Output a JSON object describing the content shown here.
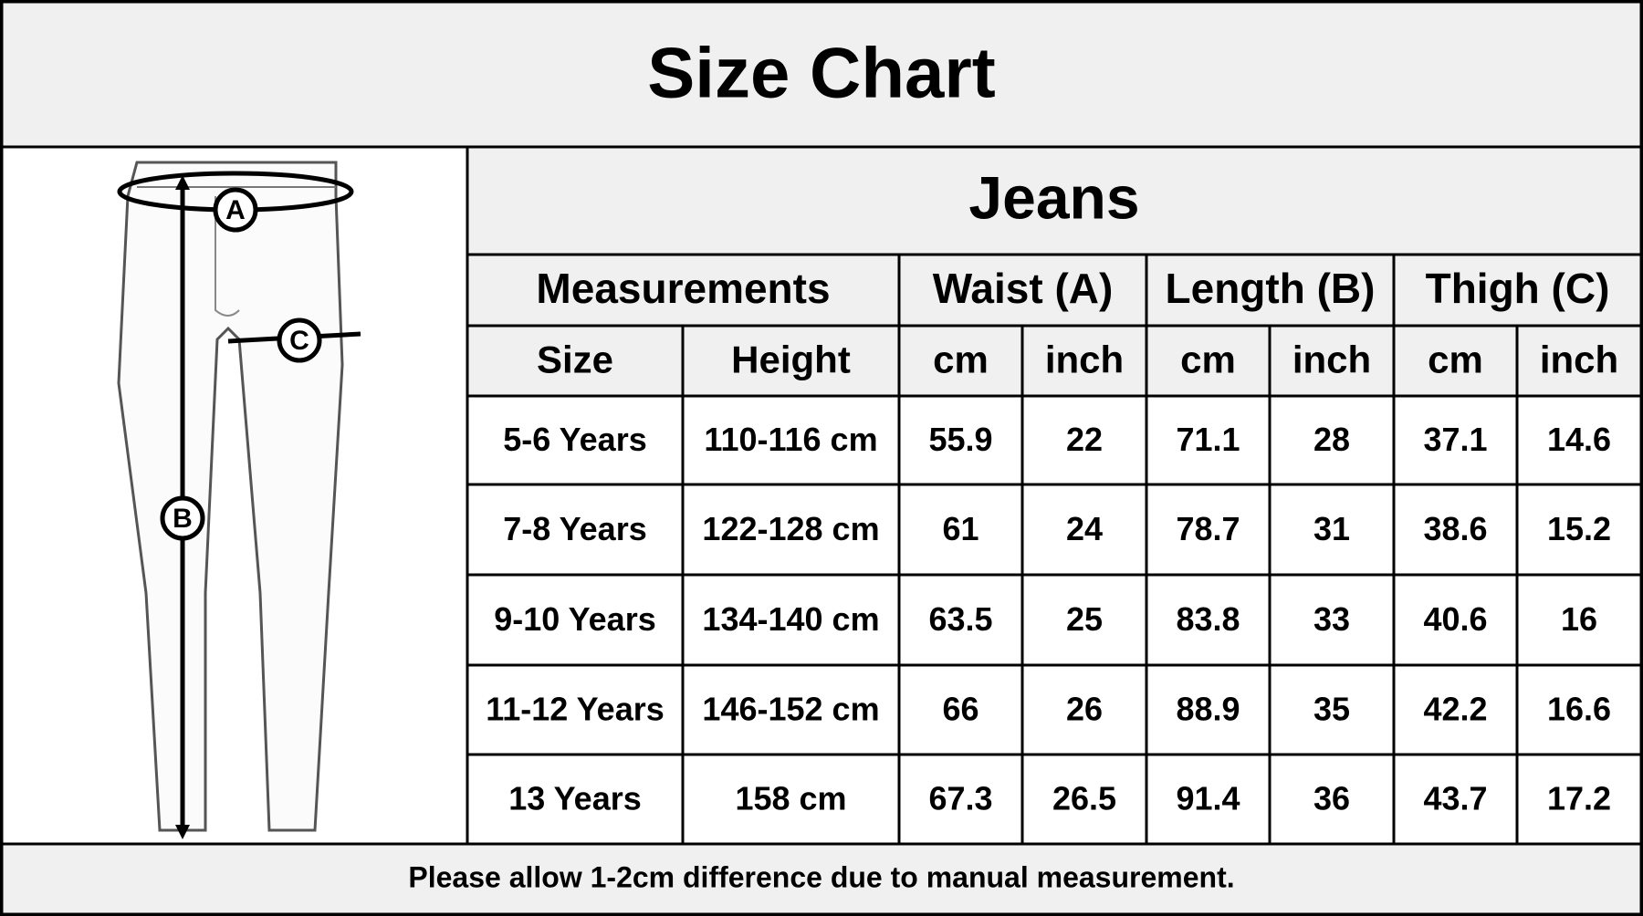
{
  "title": "Size Chart",
  "diagram": {
    "markers": [
      "A",
      "B",
      "C"
    ]
  },
  "table": {
    "title": "Jeans",
    "group_headers": [
      "Measurements",
      "Waist (A)",
      "Length (B)",
      "Thigh (C)"
    ],
    "column_headers": [
      "Size",
      "Height",
      "cm",
      "inch",
      "cm",
      "inch",
      "cm",
      "inch"
    ],
    "rows": [
      [
        "5-6 Years",
        "110-116 cm",
        "55.9",
        "22",
        "71.1",
        "28",
        "37.1",
        "14.6"
      ],
      [
        "7-8 Years",
        "122-128 cm",
        "61",
        "24",
        "78.7",
        "31",
        "38.6",
        "15.2"
      ],
      [
        "9-10 Years",
        "134-140 cm",
        "63.5",
        "25",
        "83.8",
        "33",
        "40.6",
        "16"
      ],
      [
        "11-12 Years",
        "146-152 cm",
        "66",
        "26",
        "88.9",
        "35",
        "42.2",
        "16.6"
      ],
      [
        "13 Years",
        "158 cm",
        "67.3",
        "26.5",
        "91.4",
        "36",
        "43.7",
        "17.2"
      ]
    ]
  },
  "footer": "Please allow 1-2cm difference due to manual measurement."
}
